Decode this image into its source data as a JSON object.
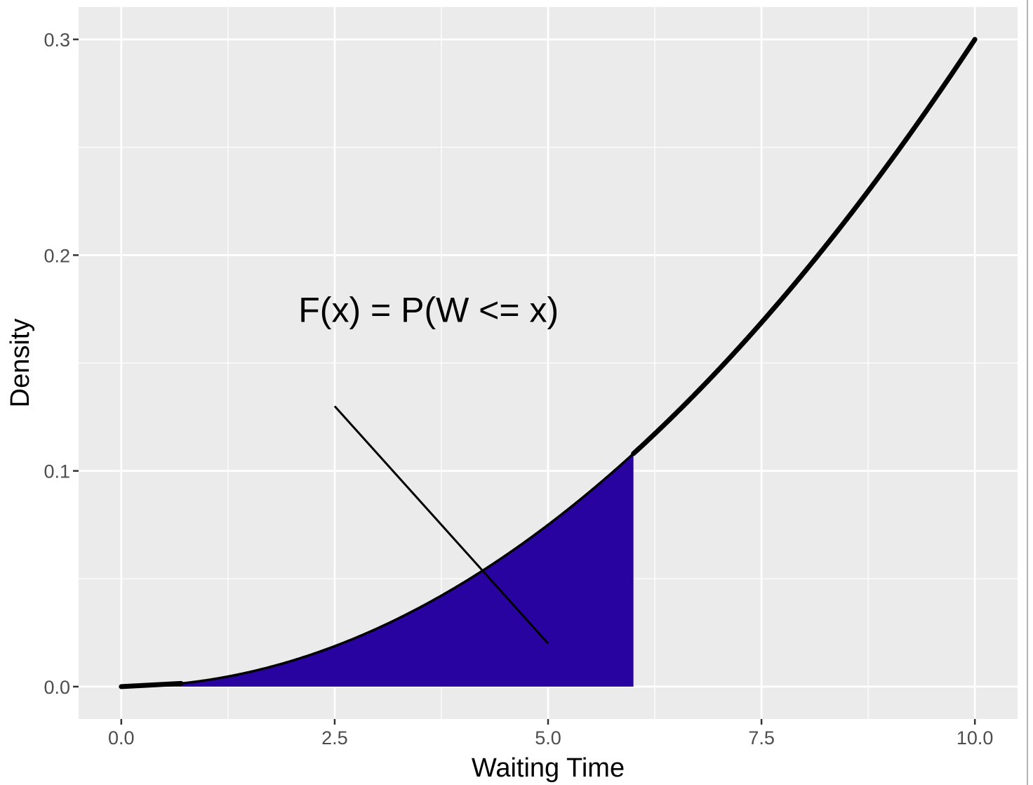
{
  "chart_data": {
    "type": "area",
    "xlabel": "Waiting Time",
    "ylabel": "Density",
    "xlim": [
      -0.5,
      10.5
    ],
    "ylim": [
      -0.015,
      0.315
    ],
    "x_ticks": [
      0.0,
      2.5,
      5.0,
      7.5,
      10.0
    ],
    "x_tick_labels": [
      "0.0",
      "2.5",
      "5.0",
      "7.5",
      "10.0"
    ],
    "y_ticks": [
      0.0,
      0.1,
      0.2,
      0.3
    ],
    "y_tick_labels": [
      "0.0",
      "0.1",
      "0.2",
      "0.3"
    ],
    "grid": true,
    "background": "#ebebeb",
    "curve": {
      "formula": "3x^2/1000",
      "domain": [
        0,
        10
      ],
      "color": "#000000"
    },
    "shaded_region": {
      "from": 0,
      "to": 6,
      "color": "#29039f"
    },
    "annotation": {
      "text": "F(x) = P(W <= x)",
      "text_at": [
        3.6,
        0.169
      ],
      "line_from": [
        2.5,
        0.13
      ],
      "line_to": [
        5.0,
        0.02
      ]
    }
  }
}
